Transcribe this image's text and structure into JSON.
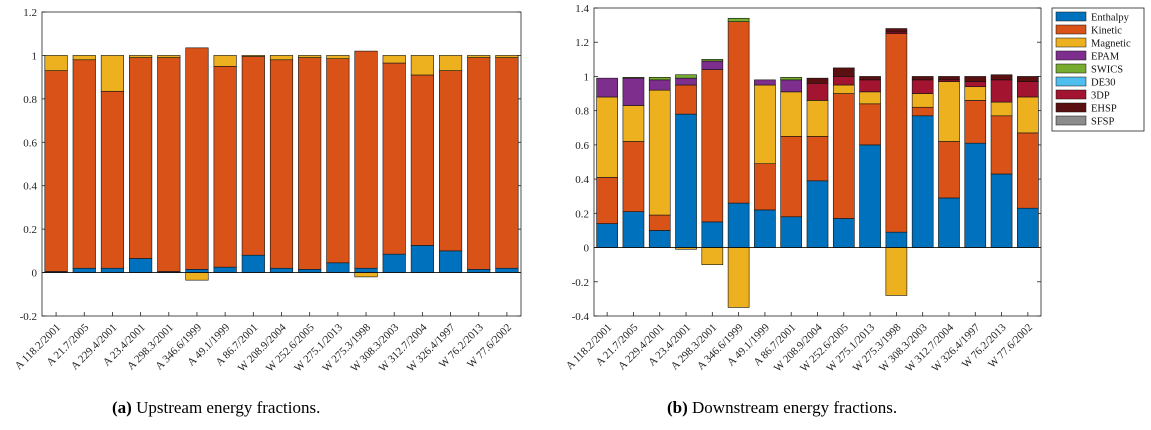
{
  "captions": [
    {
      "tag": "(a)",
      "text": "Upstream energy fractions."
    },
    {
      "tag": "(b)",
      "text": "Downstream energy fractions."
    }
  ],
  "colors": {
    "Enthalpy": "#0072bd",
    "Kinetic": "#d95319",
    "Magnetic": "#edb120",
    "EPAM": "#7e2f8e",
    "SWICS": "#77ac30",
    "DE30": "#4dbeee",
    "3DP": "#a2142f",
    "EHSP": "#5a1010",
    "SFSP": "#8c8c8c"
  },
  "chart_data": [
    {
      "type": "bar",
      "stacked": true,
      "title": "",
      "xlabel": "",
      "ylabel": "",
      "ylim": [
        -0.2,
        1.2
      ],
      "yticks": [
        "-0.2",
        "0",
        "0.2",
        "0.4",
        "0.6",
        "0.8",
        "1",
        "1.2"
      ],
      "categories": [
        "A 118.2/2001",
        "A 21.7/2005",
        "A 229.4/2001",
        "A 23.4/2001",
        "A 298.3/2001",
        "A 346.6/1999",
        "A 49.1/1999",
        "A 86.7/2001",
        "W 208.9/2004",
        "W 252.6/2005",
        "W 275.1/2013",
        "W 275.3/1998",
        "W 308.3/2003",
        "W 312.7/2004",
        "W 326.4/1997",
        "W 76.2/2013",
        "W 77.6/2002"
      ],
      "series": [
        {
          "name": "Enthalpy",
          "values": [
            0.005,
            0.02,
            0.02,
            0.065,
            0.005,
            0.015,
            0.025,
            0.08,
            0.02,
            0.015,
            0.045,
            0.02,
            0.085,
            0.125,
            0.1,
            0.015,
            0.02
          ]
        },
        {
          "name": "Kinetic",
          "values": [
            0.925,
            0.96,
            0.815,
            0.925,
            0.985,
            1.02,
            0.925,
            0.915,
            0.96,
            0.975,
            0.94,
            1.0,
            0.88,
            0.785,
            0.83,
            0.975,
            0.97
          ]
        },
        {
          "name": "Magnetic",
          "values": [
            0.07,
            0.02,
            0.165,
            0.01,
            0.01,
            -0.035,
            0.05,
            0.005,
            0.02,
            0.01,
            0.015,
            -0.02,
            0.035,
            0.09,
            0.07,
            0.01,
            0.01
          ]
        }
      ]
    },
    {
      "type": "bar",
      "stacked": true,
      "title": "",
      "xlabel": "",
      "ylabel": "",
      "ylim": [
        -0.4,
        1.4
      ],
      "yticks": [
        "-0.4",
        "-0.2",
        "0",
        "0.2",
        "0.4",
        "0.6",
        "0.8",
        "1",
        "1.2",
        "1.4"
      ],
      "legend": "outside right",
      "categories": [
        "A 118.2/2001",
        "A 21.7/2005",
        "A 229.4/2001",
        "A 23.4/2001",
        "A 298.3/2001",
        "A 346.6/1999",
        "A 49.1/1999",
        "A 86.7/2001",
        "W 208.9/2004",
        "W 252.6/2005",
        "W 275.1/2013",
        "W 275.3/1998",
        "W 308.3/2003",
        "W 312.7/2004",
        "W 326.4/1997",
        "W 76.2/2013",
        "W 77.6/2002"
      ],
      "series": [
        {
          "name": "Enthalpy",
          "values": [
            0.14,
            0.21,
            0.1,
            0.78,
            0.15,
            0.26,
            0.22,
            0.18,
            0.39,
            0.17,
            0.6,
            0.09,
            0.77,
            0.29,
            0.61,
            0.43,
            0.23
          ]
        },
        {
          "name": "Kinetic",
          "values": [
            0.27,
            0.41,
            0.09,
            0.17,
            0.89,
            1.06,
            0.27,
            0.47,
            0.26,
            0.73,
            0.24,
            1.16,
            0.05,
            0.33,
            0.25,
            0.34,
            0.44
          ]
        },
        {
          "name": "Magnetic",
          "values": [
            0.47,
            0.21,
            0.73,
            -0.01,
            -0.1,
            -0.35,
            0.46,
            0.26,
            0.21,
            0.05,
            0.07,
            -0.28,
            0.08,
            0.35,
            0.08,
            0.08,
            0.21
          ]
        },
        {
          "name": "EPAM",
          "values": [
            0.11,
            0.16,
            0.06,
            0.04,
            0.05,
            0.0,
            0.03,
            0.07,
            0.0,
            0.0,
            0.0,
            0.0,
            0.0,
            0.0,
            0.0,
            0.0,
            0.0
          ]
        },
        {
          "name": "SWICS",
          "values": [
            0.0,
            0.005,
            0.015,
            0.02,
            0.01,
            0.02,
            0.0,
            0.015,
            0.0,
            0.0,
            0.0,
            0.0,
            0.0,
            0.0,
            0.0,
            0.0,
            0.0
          ]
        },
        {
          "name": "DE30",
          "values": [
            0,
            0,
            0,
            0,
            0,
            0,
            0,
            0,
            0,
            0,
            0,
            0,
            0,
            0,
            0,
            0,
            0
          ]
        },
        {
          "name": "3DP",
          "values": [
            0.0,
            0.0,
            0.0,
            0.0,
            0.0,
            0.0,
            0.0,
            0.0,
            0.1,
            0.05,
            0.07,
            0.01,
            0.08,
            0.01,
            0.03,
            0.13,
            0.09
          ]
        },
        {
          "name": "EHSP",
          "values": [
            0.0,
            0.0,
            0.0,
            0.0,
            0.0,
            0.0,
            0.0,
            0.0,
            0.03,
            0.05,
            0.02,
            0.02,
            0.02,
            0.02,
            0.03,
            0.03,
            0.03
          ]
        },
        {
          "name": "SFSP",
          "values": [
            0,
            0,
            0,
            0,
            0,
            0,
            0,
            0,
            0,
            0,
            0,
            0,
            0,
            0,
            0,
            0,
            0
          ]
        }
      ]
    }
  ]
}
